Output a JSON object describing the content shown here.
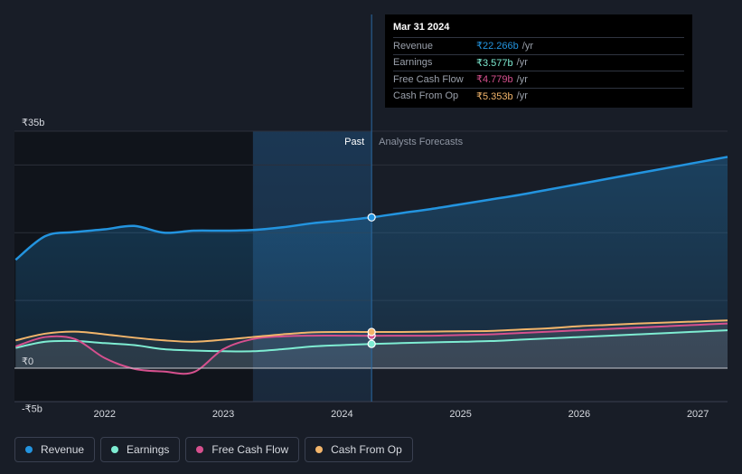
{
  "tooltip": {
    "date": "Mar 31 2024",
    "rows": [
      {
        "label": "Revenue",
        "value": "₹22.266b",
        "unit": "/yr",
        "color": "#2394df"
      },
      {
        "label": "Earnings",
        "value": "₹3.577b",
        "unit": "/yr",
        "color": "#7eecd2"
      },
      {
        "label": "Free Cash Flow",
        "value": "₹4.779b",
        "unit": "/yr",
        "color": "#d6508e"
      },
      {
        "label": "Cash From Op",
        "value": "₹5.353b",
        "unit": "/yr",
        "color": "#f2b56b"
      }
    ]
  },
  "legend": [
    {
      "label": "Revenue",
      "color": "#2394df"
    },
    {
      "label": "Earnings",
      "color": "#7eecd2"
    },
    {
      "label": "Free Cash Flow",
      "color": "#d6508e"
    },
    {
      "label": "Cash From Op",
      "color": "#f2b56b"
    }
  ],
  "chart_data": {
    "type": "line",
    "region_labels": {
      "past": "Past",
      "forecast": "Analysts Forecasts"
    },
    "y_tick_labels": [
      "₹35b",
      "₹0",
      "-₹5b"
    ],
    "y_ticks": [
      35,
      0,
      -5
    ],
    "ylim": [
      -5,
      35
    ],
    "x_tick_labels": [
      "2022",
      "2023",
      "2024",
      "2025",
      "2026",
      "2027"
    ],
    "x_ticks": [
      2022,
      2023,
      2024,
      2025,
      2026,
      2027
    ],
    "xlim": [
      2021.24,
      2027.25
    ],
    "past_start": 2023.25,
    "current": 2024.25,
    "grid": true,
    "series": [
      {
        "name": "Revenue",
        "color": "#2394df",
        "x": [
          2021.25,
          2021.5,
          2021.75,
          2022.0,
          2022.25,
          2022.5,
          2022.75,
          2023.0,
          2023.25,
          2023.5,
          2023.75,
          2024.0,
          2024.25,
          2024.5,
          2024.75,
          2025.0,
          2025.25,
          2025.5,
          2025.75,
          2026.0,
          2026.25,
          2026.5,
          2026.75,
          2027.0,
          2027.25
        ],
        "y": [
          16.0,
          19.5,
          20.1,
          20.5,
          21.0,
          20.0,
          20.3,
          20.3,
          20.4,
          20.8,
          21.4,
          21.8,
          22.27,
          22.9,
          23.5,
          24.2,
          24.9,
          25.6,
          26.4,
          27.2,
          28.0,
          28.8,
          29.6,
          30.4,
          31.2
        ]
      },
      {
        "name": "Earnings",
        "color": "#7eecd2",
        "x": [
          2021.25,
          2021.5,
          2021.75,
          2022.0,
          2022.25,
          2022.5,
          2022.75,
          2023.0,
          2023.25,
          2023.5,
          2023.75,
          2024.0,
          2024.25,
          2024.5,
          2024.75,
          2025.0,
          2025.25,
          2025.5,
          2025.75,
          2026.0,
          2026.25,
          2026.5,
          2026.75,
          2027.0,
          2027.25
        ],
        "y": [
          3.0,
          3.9,
          4.0,
          3.7,
          3.4,
          2.8,
          2.6,
          2.5,
          2.5,
          2.8,
          3.2,
          3.4,
          3.58,
          3.7,
          3.8,
          3.9,
          4.0,
          4.2,
          4.4,
          4.6,
          4.8,
          5.0,
          5.2,
          5.4,
          5.6
        ]
      },
      {
        "name": "Free Cash Flow",
        "color": "#d6508e",
        "x": [
          2021.25,
          2021.5,
          2021.75,
          2022.0,
          2022.25,
          2022.5,
          2022.75,
          2023.0,
          2023.25,
          2023.5,
          2023.75,
          2024.0,
          2024.25,
          2024.5,
          2024.75,
          2025.0,
          2025.25,
          2025.5,
          2025.75,
          2026.0,
          2026.25,
          2026.5,
          2026.75,
          2027.0,
          2027.25
        ],
        "y": [
          3.2,
          4.6,
          4.3,
          1.5,
          -0.1,
          -0.5,
          -0.6,
          2.8,
          4.3,
          4.7,
          4.8,
          4.8,
          4.78,
          4.8,
          4.8,
          4.9,
          5.0,
          5.2,
          5.4,
          5.6,
          5.8,
          6.0,
          6.2,
          6.4,
          6.6
        ]
      },
      {
        "name": "Cash From Op",
        "color": "#f2b56b",
        "x": [
          2021.25,
          2021.5,
          2021.75,
          2022.0,
          2022.25,
          2022.5,
          2022.75,
          2023.0,
          2023.25,
          2023.5,
          2023.75,
          2024.0,
          2024.25,
          2024.5,
          2024.75,
          2025.0,
          2025.25,
          2025.5,
          2025.75,
          2026.0,
          2026.25,
          2026.5,
          2026.75,
          2027.0,
          2027.25
        ],
        "y": [
          4.1,
          5.1,
          5.4,
          5.0,
          4.5,
          4.1,
          3.9,
          4.2,
          4.6,
          5.0,
          5.3,
          5.35,
          5.35,
          5.35,
          5.4,
          5.45,
          5.5,
          5.7,
          5.9,
          6.2,
          6.4,
          6.6,
          6.75,
          6.9,
          7.05
        ]
      }
    ]
  }
}
